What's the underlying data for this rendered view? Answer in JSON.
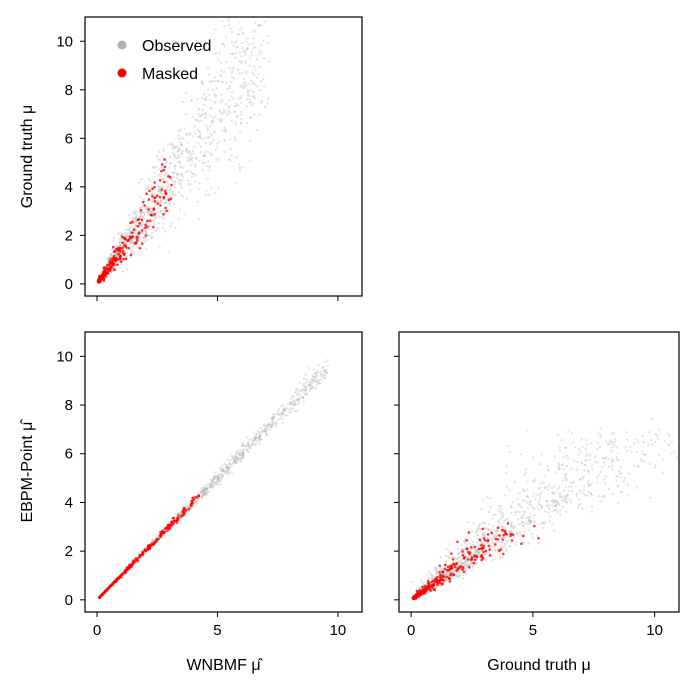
{
  "chart_data": [
    {
      "type": "scatter",
      "panel": "top-left",
      "xlabel": "",
      "ylabel": "Ground truth μ",
      "xlim": [
        -0.5,
        11
      ],
      "ylim": [
        -0.5,
        11
      ],
      "xticks": [
        "0",
        "5",
        "10"
      ],
      "xtick_values": [
        0,
        5,
        10
      ],
      "show_xtick_labels": false,
      "yticks": [
        "0",
        "2",
        "4",
        "6",
        "8",
        "10"
      ],
      "ytick_values": [
        0,
        2,
        4,
        6,
        8,
        10
      ],
      "legend_position": "top-left",
      "series": [
        {
          "name": "Observed",
          "color": "#b3b3b3",
          "opacity": 0.35,
          "n": 1400,
          "relation": "wnbmf_vs_truth"
        },
        {
          "name": "Masked",
          "color": "#ff0000",
          "opacity": 0.8,
          "n": 260,
          "relation": "wnbmf_vs_truth_masked"
        }
      ]
    },
    {
      "type": "scatter",
      "panel": "bottom-left",
      "xlabel": "WNBMF μ̂",
      "ylabel": "EBPM-Point μ̂",
      "xlim": [
        -0.5,
        11
      ],
      "ylim": [
        -0.5,
        11
      ],
      "xticks": [
        "0",
        "5",
        "10"
      ],
      "xtick_values": [
        0,
        5,
        10
      ],
      "show_xtick_labels": true,
      "yticks": [
        "0",
        "2",
        "4",
        "6",
        "8",
        "10"
      ],
      "ytick_values": [
        0,
        2,
        4,
        6,
        8,
        10
      ],
      "series": [
        {
          "name": "Observed",
          "color": "#b3b3b3",
          "opacity": 0.35,
          "n": 1400,
          "relation": "identity"
        },
        {
          "name": "Masked",
          "color": "#ff0000",
          "opacity": 0.8,
          "n": 260,
          "relation": "identity_masked"
        }
      ]
    },
    {
      "type": "scatter",
      "panel": "bottom-right",
      "xlabel": "Ground truth μ",
      "ylabel": "",
      "xlim": [
        -0.5,
        11
      ],
      "ylim": [
        -0.5,
        11
      ],
      "xticks": [
        "0",
        "5",
        "10"
      ],
      "xtick_values": [
        0,
        5,
        10
      ],
      "show_xtick_labels": true,
      "yticks": [
        "0",
        "2",
        "4",
        "6",
        "8",
        "10"
      ],
      "ytick_values": [
        0,
        2,
        4,
        6,
        8,
        10
      ],
      "show_ytick_labels": false,
      "series": [
        {
          "name": "Observed",
          "color": "#b3b3b3",
          "opacity": 0.35,
          "n": 1400,
          "relation": "truth_vs_ebpm"
        },
        {
          "name": "Masked",
          "color": "#ff0000",
          "opacity": 0.8,
          "n": 260,
          "relation": "truth_vs_ebpm_masked"
        }
      ]
    }
  ],
  "legend": {
    "items": [
      {
        "label": "Observed",
        "color": "#b3b3b3"
      },
      {
        "label": "Masked",
        "color": "#ff0000"
      }
    ]
  }
}
